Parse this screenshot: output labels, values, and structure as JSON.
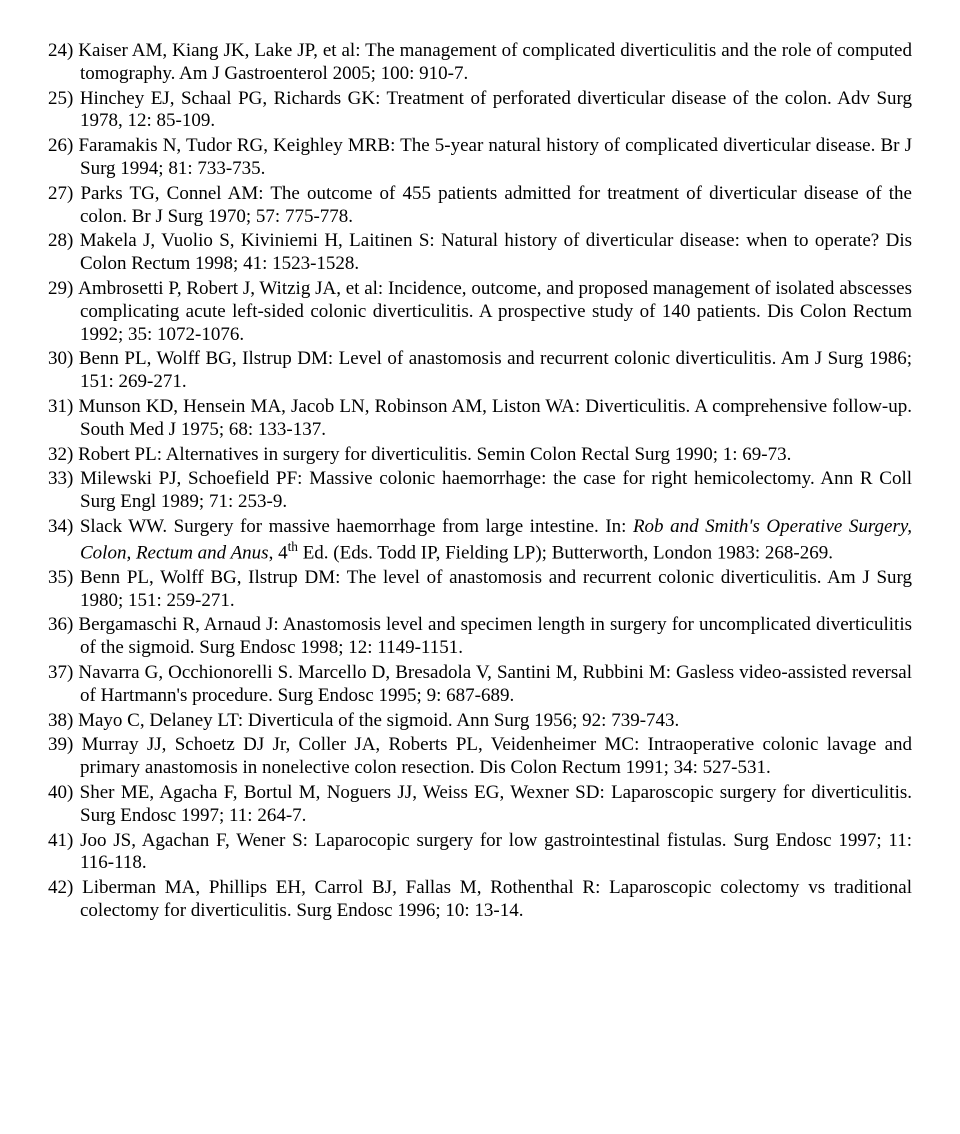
{
  "references": [
    {
      "n": 24,
      "t": "Kaiser AM, Kiang JK, Lake JP, et al: The management of complicated diverticulitis and the role of computed tomography. Am J Gastroenterol 2005; 100: 910-7."
    },
    {
      "n": 25,
      "t": "Hinchey EJ, Schaal PG, Richards GK: Treatment of perforated diverticular disease of the colon. Adv Surg 1978, 12: 85-109."
    },
    {
      "n": 26,
      "t": "Faramakis N, Tudor RG, Keighley MRB: The 5-year natural history of complicated diverticular disease. Br J Surg 1994; 81: 733-735."
    },
    {
      "n": 27,
      "t": "Parks TG, Connel AM: The outcome of 455 patients admitted for treatment of diverticular disease of the colon. Br J Surg 1970; 57: 775-778."
    },
    {
      "n": 28,
      "t": "Makela J, Vuolio S, Kiviniemi H, Laitinen S: Natural history of diverticular disease: when to operate? Dis Colon Rectum 1998; 41: 1523-1528."
    },
    {
      "n": 29,
      "t": "Ambrosetti P, Robert J, Witzig JA, et al: Incidence, outcome, and proposed management of isolated abscesses complicating acute left-sided colonic diverticulitis. A prospective study of 140 patients. Dis Colon Rectum 1992; 35: 1072-1076."
    },
    {
      "n": 30,
      "t": "Benn PL, Wolff BG, Ilstrup DM: Level of anastomosis and recurrent colonic diverticulitis. Am J Surg 1986; 151: 269-271."
    },
    {
      "n": 31,
      "t": "Munson KD, Hensein MA, Jacob LN, Robinson AM, Liston WA: Diverticulitis. A comprehensive follow-up. South Med J 1975; 68: 133-137."
    },
    {
      "n": 32,
      "t": "Robert PL: Alternatives in surgery for diverticulitis. Semin Colon Rectal Surg 1990; 1: 69-73."
    },
    {
      "n": 33,
      "t": "Milewski PJ, Schoefield PF: Massive colonic haemorrhage: the case for right hemicolectomy. Ann R Coll Surg Engl 1989; 71: 253-9."
    },
    {
      "n": 34,
      "pre": "Slack WW. Surgery for massive haemorrhage from large intestine. In: ",
      "ital": "Rob and Smith's Operative Surgery, Colon, Rectum and Anus",
      "post1": ", 4",
      "sup": "th",
      "post2": " Ed. (Eds. Todd IP, Fielding LP); Butterworth, London 1983: 268-269."
    },
    {
      "n": 35,
      "t": "Benn PL, Wolff BG, Ilstrup DM: The level of anastomosis and recurrent colonic diverticulitis. Am J Surg 1980; 151: 259-271."
    },
    {
      "n": 36,
      "t": "Bergamaschi R, Arnaud J: Anastomosis level and specimen length in surgery for uncomplicated diverticulitis of the sigmoid. Surg Endosc 1998; 12: 1149-1151."
    },
    {
      "n": 37,
      "t": "Navarra G, Occhionorelli S. Marcello D, Bresadola V, Santini M, Rubbini M: Gasless video-assisted reversal of Hartmann's procedure. Surg Endosc 1995; 9: 687-689."
    },
    {
      "n": 38,
      "t": "Mayo C, Delaney LT: Diverticula of the sigmoid. Ann Surg 1956; 92: 739-743."
    },
    {
      "n": 39,
      "t": "Murray JJ, Schoetz DJ Jr, Coller JA, Roberts PL, Veidenheimer MC: Intraoperative colonic lavage and primary anastomosis in nonelective colon resection. Dis Colon Rectum 1991; 34: 527-531."
    },
    {
      "n": 40,
      "t": "Sher ME, Agacha F, Bortul M, Noguers JJ, Weiss EG, Wexner SD: Laparoscopic surgery for diverticulitis. Surg Endosc 1997; 11: 264-7."
    },
    {
      "n": 41,
      "t": "Joo JS, Agachan F, Wener S: Laparocopic surgery for low gastrointestinal fistulas. Surg Endosc 1997; 11: 116-118."
    },
    {
      "n": 42,
      "t": "Liberman MA, Phillips EH, Carrol BJ, Fallas M, Rothenthal R: Laparoscopic colectomy vs traditional colectomy for diverticulitis. Surg Endosc 1996; 10: 13-14."
    }
  ]
}
